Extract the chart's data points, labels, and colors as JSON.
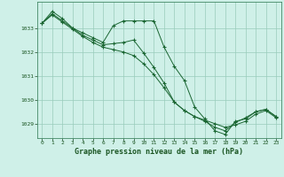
{
  "background_color": "#cff0e8",
  "grid_color": "#99ccbb",
  "line_color": "#1a6632",
  "marker_color": "#1a6632",
  "title": "Graphe pression niveau de la mer (hPa)",
  "xlim": [
    -0.5,
    23.5
  ],
  "ylim": [
    1028.4,
    1034.1
  ],
  "yticks": [
    1029,
    1030,
    1031,
    1032,
    1033
  ],
  "xticks": [
    0,
    1,
    2,
    3,
    4,
    5,
    6,
    7,
    8,
    9,
    10,
    11,
    12,
    13,
    14,
    15,
    16,
    17,
    18,
    19,
    20,
    21,
    22,
    23
  ],
  "series": [
    {
      "x": [
        0,
        1,
        2,
        3,
        4,
        5,
        6,
        7,
        8,
        9,
        10,
        11,
        12,
        13,
        14,
        15,
        16,
        17,
        18,
        19,
        20,
        21,
        22,
        23
      ],
      "y": [
        1033.2,
        1033.7,
        1033.4,
        1033.0,
        1032.8,
        1032.6,
        1032.4,
        1033.1,
        1033.3,
        1033.3,
        1033.3,
        1033.3,
        1032.2,
        1031.4,
        1030.8,
        1029.7,
        1029.2,
        1028.7,
        1028.55,
        1029.1,
        1029.2,
        1029.5,
        1029.6,
        1029.3
      ]
    },
    {
      "x": [
        0,
        1,
        2,
        3,
        4,
        5,
        6,
        7,
        8,
        9,
        10,
        11,
        12,
        13,
        14,
        15,
        16,
        17,
        18,
        19,
        20,
        21,
        22,
        23
      ],
      "y": [
        1033.2,
        1033.6,
        1033.3,
        1033.0,
        1032.7,
        1032.5,
        1032.3,
        1032.35,
        1032.4,
        1032.5,
        1031.95,
        1031.35,
        1030.7,
        1029.9,
        1029.55,
        1029.3,
        1029.1,
        1028.85,
        1028.7,
        1029.05,
        1029.25,
        1029.5,
        1029.6,
        1029.3
      ]
    },
    {
      "x": [
        0,
        1,
        2,
        3,
        4,
        5,
        6,
        7,
        8,
        9,
        10,
        11,
        12,
        13,
        14,
        15,
        16,
        17,
        18,
        19,
        20,
        21,
        22,
        23
      ],
      "y": [
        1033.2,
        1033.55,
        1033.25,
        1032.95,
        1032.65,
        1032.4,
        1032.2,
        1032.1,
        1032.0,
        1031.85,
        1031.5,
        1031.05,
        1030.5,
        1029.9,
        1029.55,
        1029.3,
        1029.15,
        1029.0,
        1028.85,
        1028.95,
        1029.1,
        1029.4,
        1029.55,
        1029.25
      ]
    }
  ]
}
